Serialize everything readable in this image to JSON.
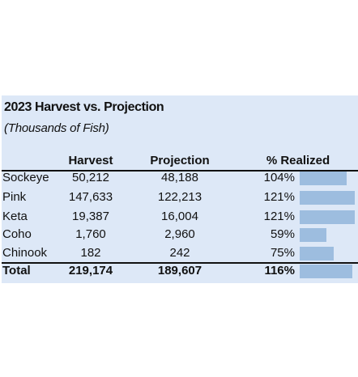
{
  "chart_data": {
    "type": "table",
    "title": "2023 Harvest vs. Projection",
    "subtitle": "(Thousands of Fish)",
    "columns": [
      "Harvest",
      "Projection",
      "% Realized"
    ],
    "rows": [
      {
        "species": "Sockeye",
        "harvest": "50,212",
        "projection": "48,188",
        "realized": "104%",
        "realized_value": 104
      },
      {
        "species": "Pink",
        "harvest": "147,633",
        "projection": "122,213",
        "realized": "121%",
        "realized_value": 121
      },
      {
        "species": "Keta",
        "harvest": "19,387",
        "projection": "16,004",
        "realized": "121%",
        "realized_value": 121
      },
      {
        "species": "Coho",
        "harvest": "1,760",
        "projection": "2,960",
        "realized": "59%",
        "realized_value": 59
      },
      {
        "species": "Chinook",
        "harvest": "182",
        "projection": "242",
        "realized": "75%",
        "realized_value": 75
      }
    ],
    "total": {
      "species": "Total",
      "harvest": "219,174",
      "projection": "189,607",
      "realized": "116%",
      "realized_value": 116
    },
    "bar_color": "#9dbddf",
    "panel_color": "#dde8f7"
  }
}
